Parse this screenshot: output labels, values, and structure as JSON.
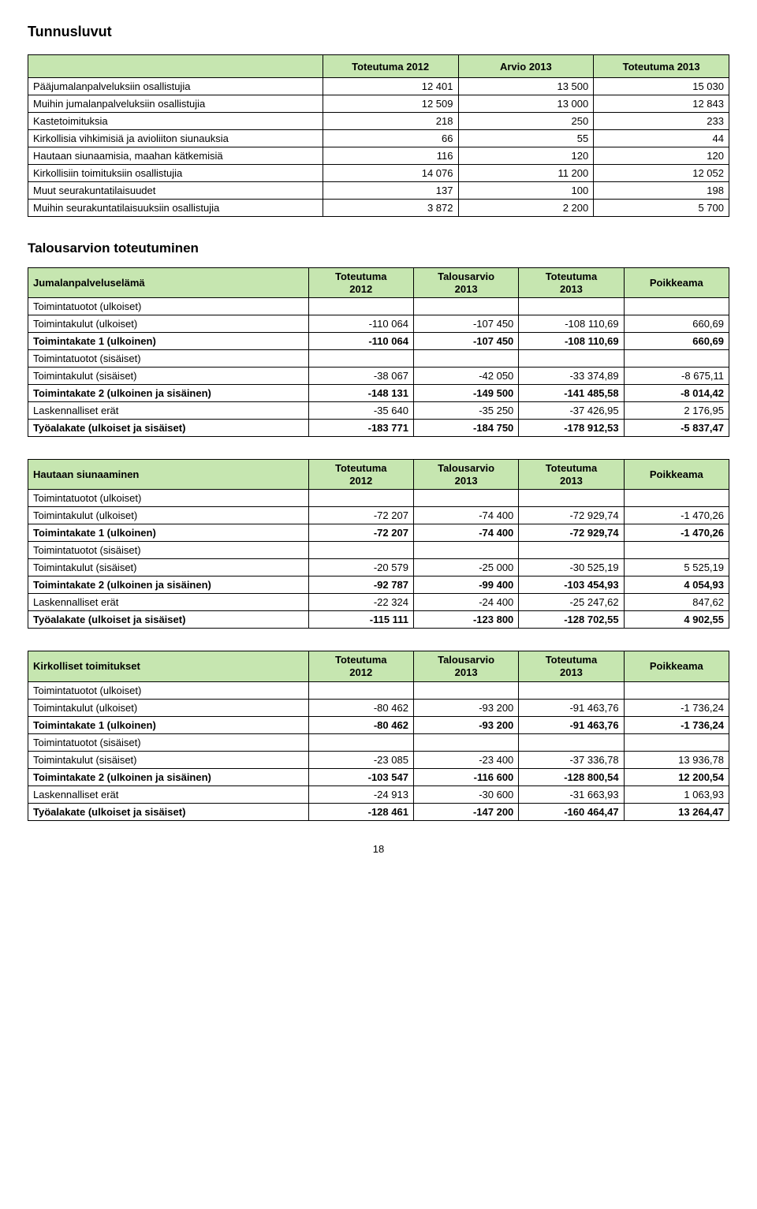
{
  "titles": {
    "tunnusluvut": "Tunnusluvut",
    "talousarvion": "Talousarvion toteutuminen"
  },
  "tbl1": {
    "headers": [
      "",
      "Toteutuma 2012",
      "Arvio 2013",
      "Toteutuma 2013"
    ],
    "rows": [
      {
        "label": "Pääjumalanpalveluksiin osallistujia",
        "v": [
          "12 401",
          "13 500",
          "15 030"
        ]
      },
      {
        "label": "Muihin jumalanpalveluksiin osallistujia",
        "v": [
          "12 509",
          "13 000",
          "12 843"
        ]
      },
      {
        "label": "Kastetoimituksia",
        "v": [
          "218",
          "250",
          "233"
        ]
      },
      {
        "label": "Kirkollisia vihkimisiä ja avioliiton siunauksia",
        "v": [
          "66",
          "55",
          "44"
        ]
      },
      {
        "label": "Hautaan siunaamisia, maahan kätkemisiä",
        "v": [
          "116",
          "120",
          "120"
        ]
      },
      {
        "label": "Kirkollisiin toimituksiin osallistujia",
        "v": [
          "14 076",
          "11 200",
          "12 052"
        ]
      },
      {
        "label": "Muut seurakuntatilaisuudet",
        "v": [
          "137",
          "100",
          "198"
        ]
      },
      {
        "label": "Muihin seurakuntatilaisuuksiin osallistujia",
        "v": [
          "3 872",
          "2 200",
          "5 700"
        ]
      }
    ]
  },
  "budget": {
    "colheads": [
      "Toteutuma\n2012",
      "Talousarvio\n2013",
      "Toteutuma\n2013",
      "Poikkeama"
    ],
    "row_labels": {
      "tuotot_ulk": "Toimintatuotot (ulkoiset)",
      "kulut_ulk": "Toimintakulut (ulkoiset)",
      "kate1": "Toimintakate 1 (ulkoinen)",
      "tuotot_sis": "Toimintatuotot (sisäiset)",
      "kulut_sis": "Toimintakulut (sisäiset)",
      "kate2": "Toimintakate 2 (ulkoinen ja sisäinen)",
      "lask": "Laskennalliset erät",
      "tyoala": "Työalakate (ulkoiset ja sisäiset)"
    },
    "tables": [
      {
        "caption": "Jumalanpalveluselämä",
        "rows": {
          "kulut_ulk": [
            "-110 064",
            "-107 450",
            "-108 110,69",
            "660,69"
          ],
          "kate1": [
            "-110 064",
            "-107 450",
            "-108 110,69",
            "660,69"
          ],
          "kulut_sis": [
            "-38 067",
            "-42 050",
            "-33 374,89",
            "-8 675,11"
          ],
          "kate2": [
            "-148 131",
            "-149 500",
            "-141 485,58",
            "-8 014,42"
          ],
          "lask": [
            "-35 640",
            "-35 250",
            "-37 426,95",
            "2 176,95"
          ],
          "tyoala": [
            "-183 771",
            "-184 750",
            "-178 912,53",
            "-5 837,47"
          ]
        }
      },
      {
        "caption": "Hautaan siunaaminen",
        "rows": {
          "kulut_ulk": [
            "-72 207",
            "-74 400",
            "-72 929,74",
            "-1 470,26"
          ],
          "kate1": [
            "-72 207",
            "-74 400",
            "-72 929,74",
            "-1 470,26"
          ],
          "kulut_sis": [
            "-20 579",
            "-25 000",
            "-30 525,19",
            "5 525,19"
          ],
          "kate2": [
            "-92 787",
            "-99 400",
            "-103 454,93",
            "4 054,93"
          ],
          "lask": [
            "-22 324",
            "-24 400",
            "-25 247,62",
            "847,62"
          ],
          "tyoala": [
            "-115 111",
            "-123 800",
            "-128 702,55",
            "4 902,55"
          ]
        }
      },
      {
        "caption": "Kirkolliset toimitukset",
        "rows": {
          "kulut_ulk": [
            "-80 462",
            "-93 200",
            "-91 463,76",
            "-1 736,24"
          ],
          "kate1": [
            "-80 462",
            "-93 200",
            "-91 463,76",
            "-1 736,24"
          ],
          "kulut_sis": [
            "-23 085",
            "-23 400",
            "-37 336,78",
            "13 936,78"
          ],
          "kate2": [
            "-103 547",
            "-116 600",
            "-128 800,54",
            "12 200,54"
          ],
          "lask": [
            "-24 913",
            "-30 600",
            "-31 663,93",
            "1 063,93"
          ],
          "tyoala": [
            "-128 461",
            "-147 200",
            "-160 464,47",
            "13 264,47"
          ]
        }
      }
    ]
  },
  "page_number": "18"
}
